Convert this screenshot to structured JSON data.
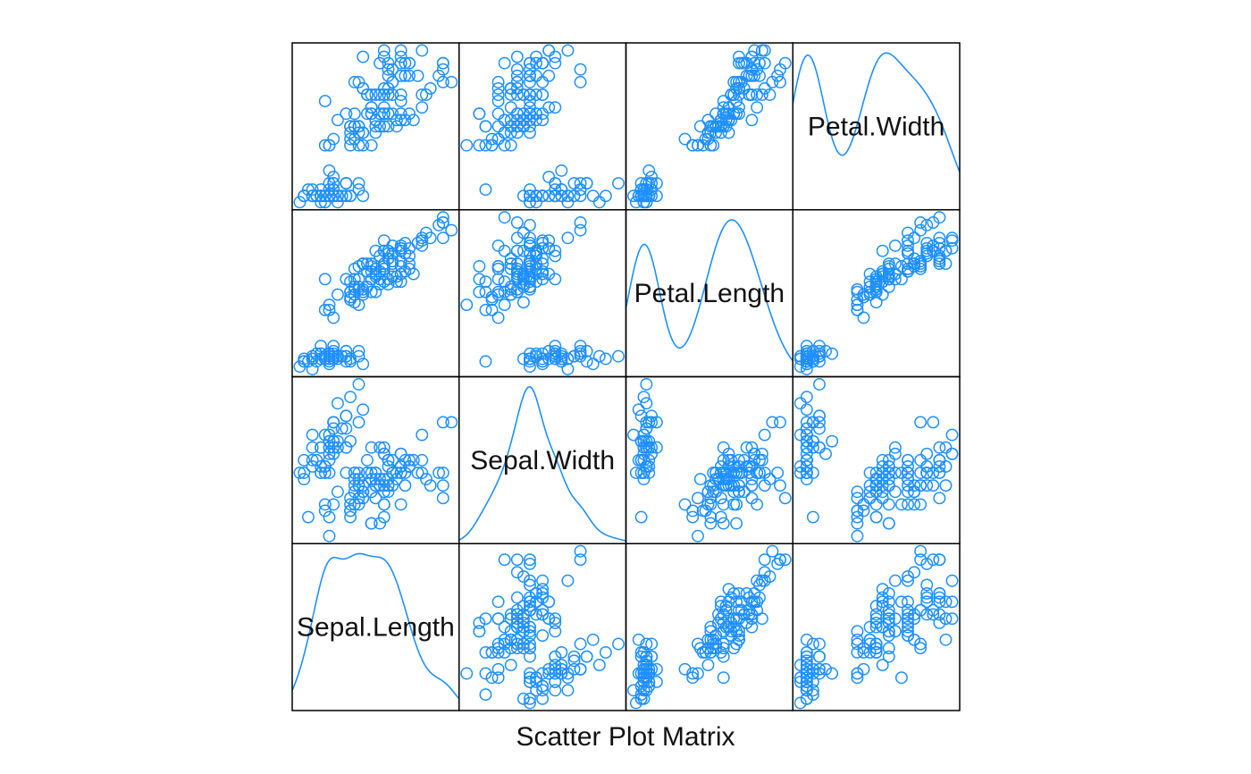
{
  "chart_data": {
    "type": "scatter",
    "subtype": "scatter-plot-matrix",
    "title": "",
    "xlabel": "Scatter Plot Matrix",
    "ylabel": "",
    "grid": false,
    "axis_ticks": false,
    "color": "#1E90FF",
    "marker": "open-circle",
    "layout_order": "first variable at bottom-left, last variable at top-right",
    "diagonal": "density curves with variable names",
    "variables": [
      "Sepal.Length",
      "Sepal.Width",
      "Petal.Length",
      "Petal.Width"
    ],
    "ranges": {
      "Sepal.Length": [
        4.3,
        7.9
      ],
      "Sepal.Width": [
        2.0,
        4.4
      ],
      "Petal.Length": [
        1.0,
        6.9
      ],
      "Petal.Width": [
        0.1,
        2.5
      ]
    },
    "density_peaks": {
      "Sepal.Length": "broad plateau",
      "Sepal.Width": "single peak near 3.0",
      "Petal.Length": "bimodal, peaks near 1.5 and 4.5-5",
      "Petal.Width": "bimodal, peaks near 0.2 and 1.4"
    },
    "observations": {
      "Sepal.Length": [
        5.1,
        4.9,
        4.7,
        4.6,
        5.0,
        5.4,
        4.6,
        5.0,
        4.4,
        4.9,
        5.4,
        4.8,
        4.8,
        4.3,
        5.8,
        5.7,
        5.4,
        5.1,
        5.7,
        5.1,
        5.4,
        5.1,
        4.6,
        5.1,
        4.8,
        5.0,
        5.0,
        5.2,
        5.2,
        4.7,
        4.8,
        5.4,
        5.2,
        5.5,
        4.9,
        5.0,
        5.5,
        4.9,
        4.4,
        5.1,
        5.0,
        4.5,
        4.4,
        5.0,
        5.1,
        4.8,
        5.1,
        4.6,
        5.3,
        5.0,
        7.0,
        6.4,
        6.9,
        5.5,
        6.5,
        5.7,
        6.3,
        4.9,
        6.6,
        5.2,
        5.0,
        5.9,
        6.0,
        6.1,
        5.6,
        6.7,
        5.6,
        5.8,
        6.2,
        5.6,
        5.9,
        6.1,
        6.3,
        6.1,
        6.4,
        6.6,
        6.8,
        6.7,
        6.0,
        5.7,
        5.5,
        5.5,
        5.8,
        6.0,
        5.4,
        6.0,
        6.7,
        6.3,
        5.6,
        5.5,
        5.5,
        6.1,
        5.8,
        5.0,
        5.6,
        5.7,
        5.7,
        6.2,
        5.1,
        5.7,
        6.3,
        5.8,
        7.1,
        6.3,
        6.5,
        7.6,
        4.9,
        7.3,
        6.7,
        7.2,
        6.5,
        6.4,
        6.8,
        5.7,
        5.8,
        6.4,
        6.5,
        7.7,
        7.7,
        6.0,
        6.9,
        5.6,
        7.7,
        6.3,
        6.7,
        7.2,
        6.2,
        6.1,
        6.4,
        7.2,
        7.4,
        7.9,
        6.4,
        6.3,
        6.1,
        7.7,
        6.3,
        6.4,
        6.0,
        6.9,
        6.7,
        6.9,
        5.8,
        6.8,
        6.7,
        6.7,
        6.3,
        6.5,
        6.2,
        5.9
      ],
      "Sepal.Width": [
        3.5,
        3.0,
        3.2,
        3.1,
        3.6,
        3.9,
        3.4,
        3.4,
        2.9,
        3.1,
        3.7,
        3.4,
        3.0,
        3.0,
        4.0,
        4.4,
        3.9,
        3.5,
        3.8,
        3.8,
        3.4,
        3.7,
        3.6,
        3.3,
        3.4,
        3.0,
        3.4,
        3.5,
        3.4,
        3.2,
        3.1,
        3.4,
        4.1,
        4.2,
        3.1,
        3.2,
        3.5,
        3.6,
        3.0,
        3.4,
        3.5,
        2.3,
        3.2,
        3.5,
        3.8,
        3.0,
        3.8,
        3.2,
        3.7,
        3.3,
        3.2,
        3.2,
        3.1,
        2.3,
        2.8,
        2.8,
        3.3,
        2.4,
        2.9,
        2.7,
        2.0,
        3.0,
        2.2,
        2.9,
        2.9,
        3.1,
        3.0,
        2.7,
        2.2,
        2.5,
        3.2,
        2.8,
        2.5,
        2.8,
        2.9,
        3.0,
        2.8,
        3.0,
        2.9,
        2.6,
        2.4,
        2.4,
        2.7,
        2.7,
        3.0,
        3.4,
        3.1,
        2.3,
        3.0,
        2.5,
        2.6,
        3.0,
        2.6,
        2.3,
        2.7,
        3.0,
        2.9,
        2.9,
        2.5,
        2.8,
        3.3,
        2.7,
        3.0,
        2.9,
        3.0,
        3.0,
        2.5,
        2.9,
        2.5,
        3.6,
        3.2,
        2.7,
        3.0,
        2.5,
        2.8,
        3.2,
        3.0,
        3.8,
        2.6,
        2.2,
        3.2,
        2.8,
        2.8,
        2.7,
        3.3,
        3.2,
        2.8,
        3.0,
        2.8,
        3.0,
        2.8,
        3.8,
        2.8,
        2.8,
        2.6,
        3.0,
        3.4,
        3.1,
        3.0,
        3.1,
        3.1,
        3.1,
        2.7,
        3.2,
        3.3,
        3.0,
        2.5,
        3.0,
        3.4,
        3.0
      ],
      "Petal.Length": [
        1.4,
        1.4,
        1.3,
        1.5,
        1.4,
        1.7,
        1.4,
        1.5,
        1.4,
        1.5,
        1.5,
        1.6,
        1.4,
        1.1,
        1.2,
        1.5,
        1.3,
        1.4,
        1.7,
        1.5,
        1.7,
        1.5,
        1.0,
        1.7,
        1.9,
        1.6,
        1.6,
        1.5,
        1.4,
        1.6,
        1.6,
        1.5,
        1.5,
        1.4,
        1.5,
        1.2,
        1.3,
        1.4,
        1.3,
        1.5,
        1.3,
        1.3,
        1.3,
        1.6,
        1.9,
        1.4,
        1.6,
        1.4,
        1.5,
        1.4,
        4.7,
        4.5,
        4.9,
        4.0,
        4.6,
        4.5,
        4.7,
        3.3,
        4.6,
        3.9,
        3.5,
        4.2,
        4.0,
        4.7,
        3.6,
        4.4,
        4.5,
        4.1,
        4.5,
        3.9,
        4.8,
        4.0,
        4.9,
        4.7,
        4.3,
        4.4,
        4.8,
        5.0,
        4.5,
        3.5,
        3.8,
        3.7,
        3.9,
        5.1,
        4.5,
        4.5,
        4.7,
        4.4,
        4.1,
        4.0,
        4.4,
        4.6,
        4.0,
        3.3,
        4.2,
        4.2,
        4.2,
        4.3,
        3.0,
        4.1,
        6.0,
        5.1,
        5.9,
        5.6,
        5.8,
        6.6,
        4.5,
        6.3,
        5.8,
        6.1,
        5.1,
        5.3,
        5.5,
        5.0,
        5.1,
        5.3,
        5.5,
        6.7,
        6.9,
        5.0,
        5.7,
        4.9,
        6.7,
        4.9,
        5.7,
        6.0,
        4.8,
        4.9,
        5.6,
        5.8,
        6.1,
        6.4,
        5.6,
        5.1,
        5.6,
        6.1,
        5.6,
        5.5,
        4.8,
        5.4,
        5.6,
        5.1,
        5.1,
        5.9,
        5.7,
        5.2,
        5.0,
        5.2,
        5.4,
        5.1
      ],
      "Petal.Width": [
        0.2,
        0.2,
        0.2,
        0.2,
        0.2,
        0.4,
        0.3,
        0.2,
        0.2,
        0.1,
        0.2,
        0.2,
        0.1,
        0.1,
        0.2,
        0.4,
        0.4,
        0.3,
        0.3,
        0.3,
        0.2,
        0.4,
        0.2,
        0.5,
        0.2,
        0.2,
        0.4,
        0.2,
        0.2,
        0.2,
        0.2,
        0.4,
        0.1,
        0.2,
        0.2,
        0.2,
        0.2,
        0.1,
        0.2,
        0.2,
        0.3,
        0.3,
        0.2,
        0.6,
        0.4,
        0.3,
        0.2,
        0.2,
        0.2,
        0.2,
        1.4,
        1.5,
        1.5,
        1.3,
        1.5,
        1.3,
        1.6,
        1.0,
        1.3,
        1.4,
        1.0,
        1.5,
        1.0,
        1.4,
        1.3,
        1.4,
        1.5,
        1.0,
        1.5,
        1.1,
        1.8,
        1.3,
        1.5,
        1.2,
        1.3,
        1.4,
        1.4,
        1.7,
        1.5,
        1.0,
        1.1,
        1.0,
        1.2,
        1.6,
        1.5,
        1.6,
        1.5,
        1.3,
        1.3,
        1.3,
        1.2,
        1.4,
        1.2,
        1.0,
        1.3,
        1.2,
        1.3,
        1.3,
        1.1,
        1.3,
        2.5,
        1.9,
        2.1,
        1.8,
        2.2,
        2.1,
        1.7,
        1.8,
        1.8,
        2.5,
        2.0,
        1.9,
        2.1,
        2.0,
        2.4,
        2.3,
        1.8,
        2.2,
        2.3,
        1.5,
        2.3,
        2.0,
        2.0,
        1.8,
        2.1,
        1.8,
        1.8,
        1.8,
        2.1,
        1.6,
        1.9,
        2.0,
        2.2,
        1.5,
        1.4,
        2.3,
        2.4,
        1.8,
        1.8,
        2.1,
        2.4,
        2.3,
        1.9,
        2.3,
        2.5,
        2.3,
        1.9,
        2.0,
        2.3,
        1.8
      ]
    }
  }
}
